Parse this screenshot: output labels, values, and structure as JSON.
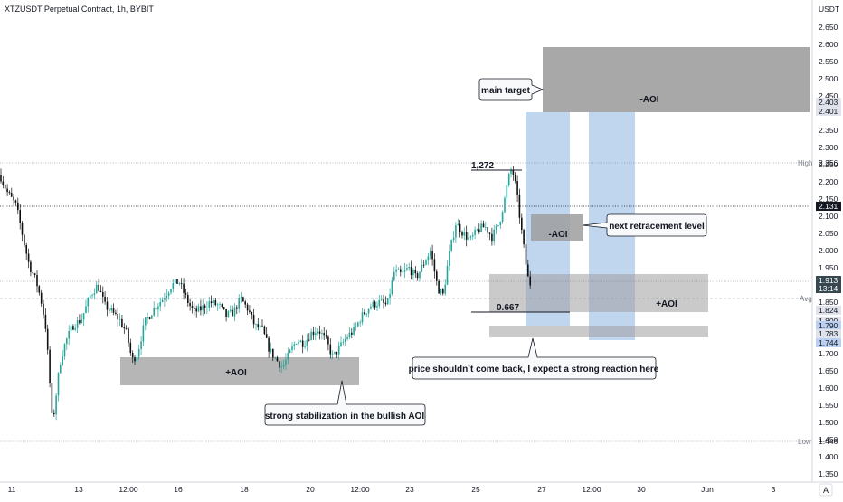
{
  "header": {
    "title": "XTZUSDT Perpetual Contract, 1h, BYBIT",
    "currency": "USDT"
  },
  "colors": {
    "bull": "#26a69a",
    "bear": "#111111",
    "aoi_zone": "#9e9e9e",
    "fib_blue": "#8db4e2",
    "axis_text": "#131722",
    "grid": "#f0f3fa"
  },
  "chart_data": {
    "type": "candlestick",
    "ylim": [
      1.33,
      2.68
    ],
    "y_ticks": [
      1.35,
      1.4,
      1.45,
      1.5,
      1.55,
      1.6,
      1.65,
      1.7,
      1.75,
      1.8,
      1.85,
      1.9,
      1.95,
      2.0,
      2.05,
      2.1,
      2.15,
      2.2,
      2.25,
      2.3,
      2.35,
      2.4,
      2.45,
      2.5,
      2.55,
      2.6,
      2.65
    ],
    "x_ticks": [
      "11",
      "13",
      "12:00",
      "16",
      "18",
      "20",
      "12:00",
      "23",
      "25",
      "27",
      "12:00",
      "30",
      "Jun",
      "3"
    ],
    "price_path": [
      [
        0,
        2.22
      ],
      [
        8,
        2.17
      ],
      [
        18,
        2.13
      ],
      [
        26,
        2.03
      ],
      [
        32,
        1.96
      ],
      [
        40,
        1.91
      ],
      [
        45,
        1.86
      ],
      [
        50,
        1.79
      ],
      [
        54,
        1.66
      ],
      [
        58,
        1.49
      ],
      [
        62,
        1.58
      ],
      [
        66,
        1.67
      ],
      [
        72,
        1.73
      ],
      [
        80,
        1.78
      ],
      [
        90,
        1.8
      ],
      [
        100,
        1.87
      ],
      [
        108,
        1.9
      ],
      [
        116,
        1.84
      ],
      [
        124,
        1.82
      ],
      [
        132,
        1.8
      ],
      [
        140,
        1.76
      ],
      [
        146,
        1.68
      ],
      [
        152,
        1.7
      ],
      [
        160,
        1.79
      ],
      [
        170,
        1.83
      ],
      [
        180,
        1.86
      ],
      [
        190,
        1.9
      ],
      [
        198,
        1.91
      ],
      [
        206,
        1.86
      ],
      [
        214,
        1.82
      ],
      [
        222,
        1.83
      ],
      [
        232,
        1.85
      ],
      [
        242,
        1.84
      ],
      [
        250,
        1.81
      ],
      [
        258,
        1.82
      ],
      [
        266,
        1.86
      ],
      [
        274,
        1.83
      ],
      [
        282,
        1.78
      ],
      [
        290,
        1.77
      ],
      [
        298,
        1.71
      ],
      [
        306,
        1.68
      ],
      [
        312,
        1.66
      ],
      [
        320,
        1.7
      ],
      [
        328,
        1.74
      ],
      [
        336,
        1.73
      ],
      [
        344,
        1.76
      ],
      [
        352,
        1.77
      ],
      [
        360,
        1.74
      ],
      [
        368,
        1.69
      ],
      [
        376,
        1.72
      ],
      [
        384,
        1.75
      ],
      [
        392,
        1.77
      ],
      [
        400,
        1.81
      ],
      [
        410,
        1.84
      ],
      [
        420,
        1.85
      ],
      [
        428,
        1.84
      ],
      [
        436,
        1.94
      ],
      [
        444,
        1.93
      ],
      [
        452,
        1.95
      ],
      [
        460,
        1.92
      ],
      [
        468,
        1.96
      ],
      [
        476,
        2.0
      ],
      [
        484,
        1.89
      ],
      [
        490,
        1.87
      ],
      [
        496,
        1.98
      ],
      [
        504,
        2.08
      ],
      [
        512,
        2.05
      ],
      [
        520,
        2.03
      ],
      [
        528,
        2.06
      ],
      [
        536,
        2.07
      ],
      [
        544,
        2.04
      ],
      [
        552,
        2.08
      ],
      [
        558,
        2.15
      ],
      [
        562,
        2.21
      ],
      [
        566,
        2.24
      ],
      [
        570,
        2.19
      ],
      [
        574,
        2.11
      ],
      [
        578,
        2.03
      ],
      [
        582,
        1.95
      ],
      [
        585,
        1.9
      ],
      [
        588,
        1.91
      ]
    ],
    "price_labels": [
      {
        "text": "1.913",
        "bg": "#37474f",
        "value": 1.913
      },
      {
        "text": "13:14",
        "bg": "#37474f",
        "value": 1.895
      },
      {
        "text": "1.824",
        "bg": "#e0e3eb",
        "value": 1.824
      },
      {
        "text": "1.800",
        "bg": "#e0e3eb",
        "value": 1.8
      },
      {
        "text": "1.790",
        "bg": "#bbd0f0",
        "value": 1.79
      },
      {
        "text": "1.783",
        "bg": "#e0e3eb",
        "value": 1.783
      },
      {
        "text": "1.744",
        "bg": "#bbd0f0",
        "value": 1.744
      }
    ]
  },
  "levels": {
    "high": {
      "label": "High",
      "value": "2.256"
    },
    "low": {
      "label": "Low",
      "value": "1.446"
    },
    "avg": {
      "label": "Avg",
      "value": "1.860"
    },
    "line_2131": {
      "value": "2.131"
    },
    "line_1913": {
      "value": "1.913"
    },
    "main_target_top": {
      "value": "2.403"
    },
    "main_target_bottom": {
      "value": "2.401"
    }
  },
  "annotations": {
    "main_target": "main target",
    "neg_aoi_top": "-AOI",
    "neg_aoi_mid": "-AOI",
    "next_retracement": "next retracement level",
    "pos_aoi_right": "+AOI",
    "pos_aoi_left": "+AOI",
    "price_come_back": "price shouldn’t come back, I expect a strong reaction here",
    "stabilization": "strong stabilization in the bullish AOI",
    "fib_1272": "1,272",
    "fib_0667": "0.667"
  },
  "scale_button": "A"
}
